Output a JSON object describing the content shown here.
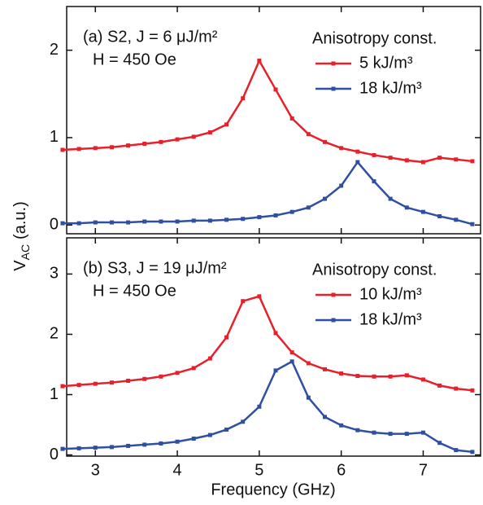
{
  "chart_data": [
    {
      "type": "line",
      "annotations": [
        "(a) S2, J = 6 μJ/m²",
        "H = 450 Oe"
      ],
      "legend_title": "Anisotropy const.",
      "x": [
        2.6,
        2.8,
        3.0,
        3.2,
        3.4,
        3.6,
        3.8,
        4.0,
        4.2,
        4.4,
        4.6,
        4.8,
        5.0,
        5.2,
        5.4,
        5.6,
        5.8,
        6.0,
        6.2,
        6.4,
        6.6,
        6.8,
        7.0,
        7.2,
        7.4,
        7.6
      ],
      "series": [
        {
          "name": "5 kJ/m³",
          "color": "#e8202a",
          "values": [
            0.86,
            0.87,
            0.88,
            0.89,
            0.91,
            0.93,
            0.95,
            0.98,
            1.01,
            1.06,
            1.15,
            1.45,
            1.88,
            1.55,
            1.22,
            1.04,
            0.95,
            0.88,
            0.84,
            0.8,
            0.77,
            0.74,
            0.72,
            0.77,
            0.75,
            0.73
          ]
        },
        {
          "name": "18 kJ/m³",
          "color": "#2f4fa0",
          "values": [
            0.02,
            0.02,
            0.03,
            0.03,
            0.03,
            0.04,
            0.04,
            0.04,
            0.05,
            0.05,
            0.06,
            0.07,
            0.09,
            0.11,
            0.15,
            0.2,
            0.3,
            0.45,
            0.72,
            0.5,
            0.3,
            0.2,
            0.15,
            0.1,
            0.06,
            0.01
          ]
        }
      ],
      "xlim": [
        2.65,
        7.7
      ],
      "xticks": [
        3,
        4,
        5,
        6,
        7
      ],
      "ylim": [
        -0.1,
        2.5
      ],
      "yticks": [
        0,
        1,
        2
      ]
    },
    {
      "type": "line",
      "annotations": [
        "(b) S3, J = 19 μJ/m²",
        "H = 450 Oe"
      ],
      "legend_title": "Anisotropy const.",
      "x": [
        2.6,
        2.8,
        3.0,
        3.2,
        3.4,
        3.6,
        3.8,
        4.0,
        4.2,
        4.4,
        4.6,
        4.8,
        5.0,
        5.2,
        5.4,
        5.6,
        5.8,
        6.0,
        6.2,
        6.4,
        6.6,
        6.8,
        7.0,
        7.2,
        7.4,
        7.6
      ],
      "series": [
        {
          "name": "10 kJ/m³",
          "color": "#e8202a",
          "values": [
            1.14,
            1.16,
            1.18,
            1.2,
            1.23,
            1.26,
            1.3,
            1.36,
            1.44,
            1.6,
            1.95,
            2.55,
            2.63,
            2.02,
            1.7,
            1.52,
            1.42,
            1.35,
            1.31,
            1.3,
            1.3,
            1.32,
            1.25,
            1.15,
            1.1,
            1.07
          ]
        },
        {
          "name": "18 kJ/m³",
          "color": "#2f4fa0",
          "values": [
            0.1,
            0.11,
            0.12,
            0.13,
            0.15,
            0.17,
            0.19,
            0.22,
            0.27,
            0.33,
            0.42,
            0.55,
            0.8,
            1.4,
            1.55,
            0.95,
            0.63,
            0.49,
            0.41,
            0.37,
            0.35,
            0.35,
            0.37,
            0.2,
            0.08,
            0.05
          ]
        }
      ],
      "xlim": [
        2.65,
        7.7
      ],
      "xticks": [
        3,
        4,
        5,
        6,
        7
      ],
      "ylim": [
        -0.02,
        3.6
      ],
      "yticks": [
        0,
        1,
        2,
        3
      ]
    }
  ],
  "xlabel": "Frequency (GHz)",
  "ylabel": {
    "main": "V",
    "sub": "AC",
    "rest": "(a.u.)"
  }
}
